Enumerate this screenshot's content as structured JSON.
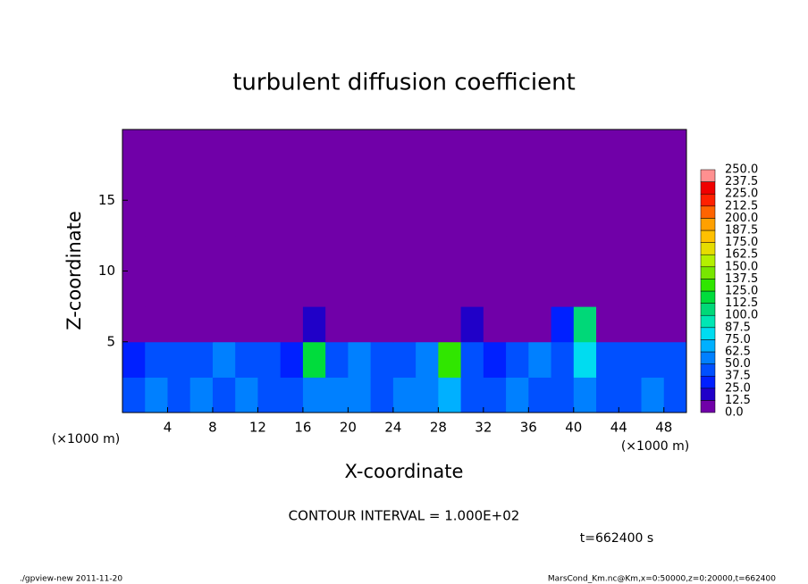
{
  "chart_data": {
    "type": "heatmap",
    "title": "turbulent diffusion coefficient",
    "x_label": "X-coordinate",
    "y_label": "Z-coordinate",
    "x_unit": "(×1000 m)",
    "y_unit": "(×1000 m)",
    "annotation": "CONTOUR INTERVAL = 1.000E+02",
    "time_label": "t=662400 s",
    "footer_left": "./gpview-new  2011-11-20",
    "footer_right": "MarsCond_Km.nc@Km,x=0:50000,z=0:20000,t=662400",
    "xlim": [
      0,
      50
    ],
    "ylim": [
      0,
      20
    ],
    "xticks": [
      4,
      8,
      12,
      16,
      20,
      24,
      28,
      32,
      36,
      40,
      44,
      48
    ],
    "yticks": [
      5,
      10,
      15
    ],
    "x": [
      1,
      3,
      5,
      7,
      9,
      11,
      13,
      15,
      17,
      19,
      21,
      23,
      25,
      27,
      29,
      31,
      33,
      35,
      37,
      39,
      41,
      43,
      45,
      47,
      49
    ],
    "y": [
      1.25,
      3.75,
      6.25,
      8.75,
      11.25,
      13.75,
      16.25,
      18.75
    ],
    "values": [
      [
        45,
        50,
        40,
        55,
        45,
        50,
        40,
        45,
        60,
        55,
        50,
        45,
        50,
        55,
        70,
        45,
        40,
        50,
        45,
        45,
        60,
        40,
        45,
        50,
        45
      ],
      [
        35,
        40,
        45,
        40,
        50,
        45,
        40,
        35,
        120,
        45,
        50,
        40,
        45,
        55,
        125,
        40,
        35,
        45,
        50,
        40,
        80,
        45,
        40,
        45,
        40
      ],
      [
        10,
        5,
        8,
        6,
        4,
        5,
        3,
        10,
        20,
        8,
        5,
        4,
        6,
        10,
        5,
        15,
        10,
        8,
        12,
        25,
        110,
        10,
        8,
        5,
        10
      ],
      [
        6,
        4,
        5,
        3,
        2,
        3,
        5,
        4,
        2,
        3,
        2,
        3,
        2,
        2,
        3,
        5,
        4,
        3,
        5,
        8,
        6,
        4,
        3,
        6,
        4
      ],
      [
        0,
        0,
        1,
        0,
        0,
        0,
        0,
        0,
        0,
        0,
        0,
        0,
        0,
        0,
        0,
        0,
        0,
        0,
        0,
        0,
        0,
        0,
        0,
        0,
        0
      ],
      [
        0,
        0,
        0,
        0,
        0,
        0,
        0,
        0,
        0,
        0,
        0,
        0,
        0,
        0,
        0,
        0,
        0,
        0,
        0,
        0,
        0,
        0,
        0,
        0,
        0
      ],
      [
        0,
        0,
        0,
        0,
        0,
        0,
        0,
        0,
        0,
        0,
        0,
        0,
        0,
        0,
        0,
        0,
        0,
        0,
        0,
        0,
        0,
        0,
        0,
        0,
        0
      ],
      [
        0,
        0,
        0,
        0,
        0,
        0,
        0,
        0,
        0,
        0,
        0,
        0,
        0,
        0,
        0,
        0,
        0,
        0,
        0,
        0,
        0,
        0,
        0,
        0,
        0
      ]
    ],
    "levels": [
      {
        "value": 0,
        "label": "0.0"
      },
      {
        "value": 12.5,
        "label": "12.5"
      },
      {
        "value": 25,
        "label": "25.0"
      },
      {
        "value": 37.5,
        "label": "37.5"
      },
      {
        "value": 50,
        "label": "50.0"
      },
      {
        "value": 62.5,
        "label": "62.5"
      },
      {
        "value": 75,
        "label": "75.0"
      },
      {
        "value": 87.5,
        "label": "87.5"
      },
      {
        "value": 100,
        "label": "100.0"
      },
      {
        "value": 112.5,
        "label": "112.5"
      },
      {
        "value": 125,
        "label": "125.0"
      },
      {
        "value": 137.5,
        "label": "137.5"
      },
      {
        "value": 150,
        "label": "150.0"
      },
      {
        "value": 162.5,
        "label": "162.5"
      },
      {
        "value": 175,
        "label": "175.0"
      },
      {
        "value": 187.5,
        "label": "187.5"
      },
      {
        "value": 200,
        "label": "200.0"
      },
      {
        "value": 212.5,
        "label": "212.5"
      },
      {
        "value": 225,
        "label": "225.0"
      },
      {
        "value": 237.5,
        "label": "237.5"
      },
      {
        "value": 250,
        "label": "250.0"
      }
    ],
    "colors": [
      "#7000a8",
      "#2000c8",
      "#0020ff",
      "#0050ff",
      "#0080ff",
      "#00b0ff",
      "#00dcf0",
      "#00e6b4",
      "#00d878",
      "#00dc3c",
      "#30e600",
      "#78e600",
      "#b4f000",
      "#e6dc00",
      "#ffc000",
      "#ffa000",
      "#ff6400",
      "#ff2000",
      "#f00000",
      "#ff9090"
    ]
  }
}
